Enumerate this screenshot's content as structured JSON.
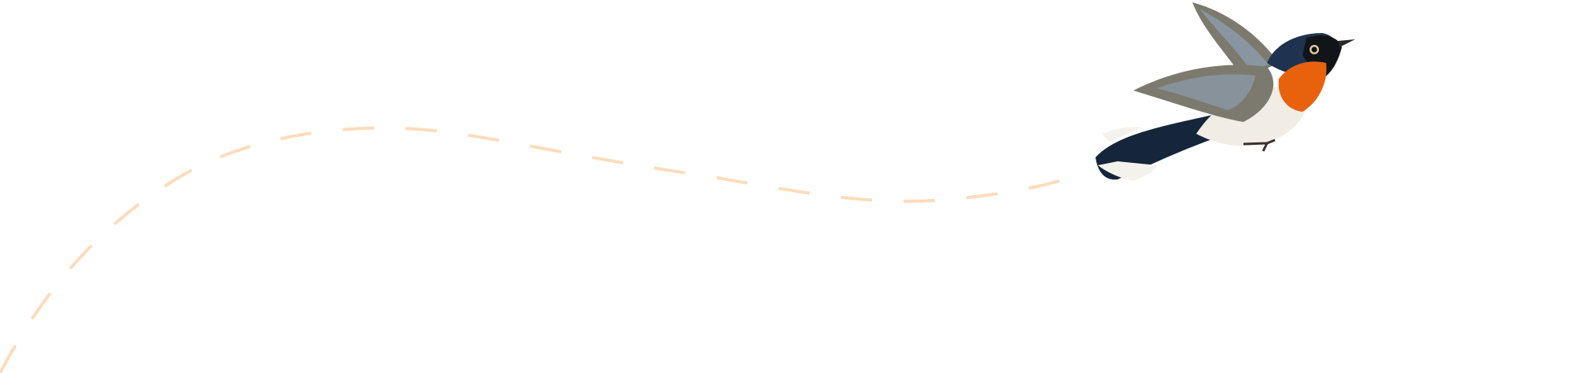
{
  "scene": {
    "background": "#ffffff",
    "flight_path": {
      "style": "dashed",
      "color": "#fcdcbc"
    },
    "bird": {
      "icon": "bird-illustration",
      "colors": {
        "head": "#1f3350",
        "mask": "#111418",
        "throat": "#e8620e",
        "belly": "#f1ede4",
        "wing": "#7c7a6e",
        "wing_highlight": "#8fa2b8",
        "tail": "#15253a",
        "tail_tip": "#f4f2ec"
      }
    }
  }
}
